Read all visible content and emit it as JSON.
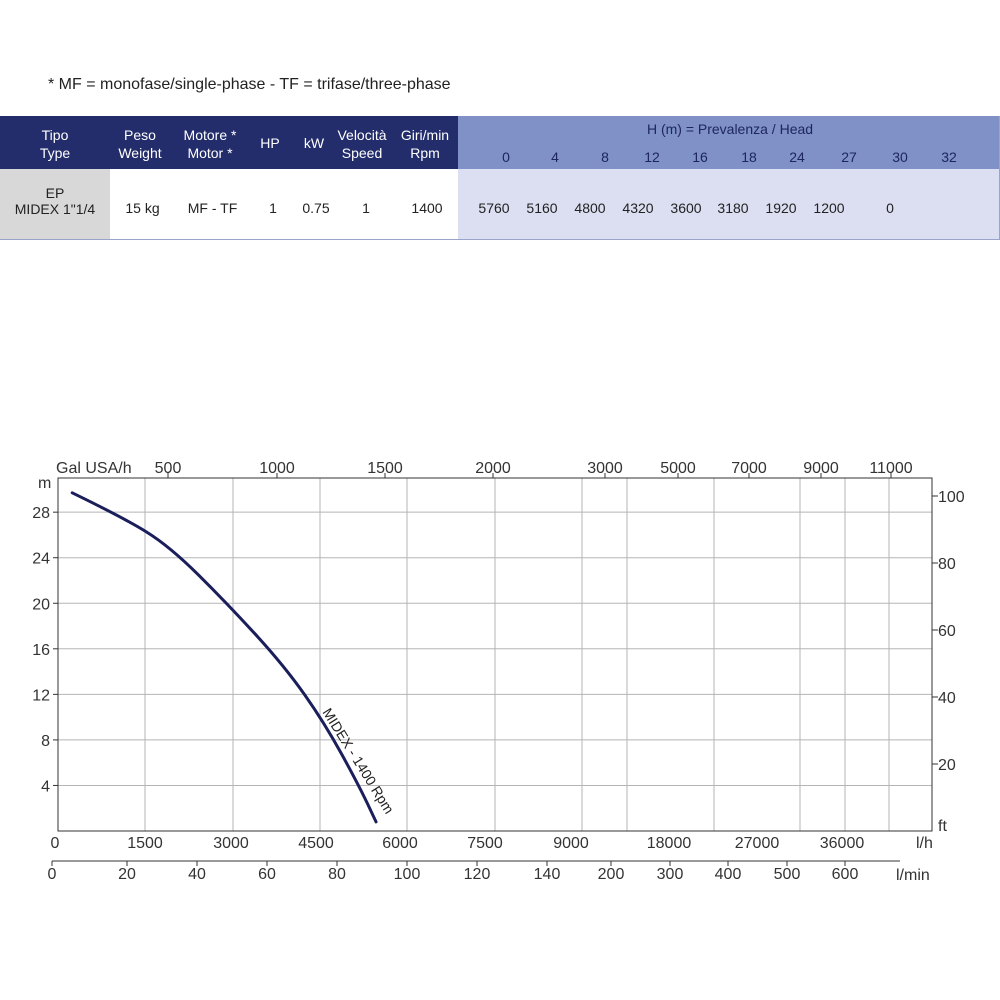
{
  "note": "* MF = monofase/single-phase - TF = trifase/three-phase",
  "table": {
    "headers": [
      {
        "key": "type",
        "label": "Tipo\nType"
      },
      {
        "key": "weight",
        "label": "Peso\nWeight"
      },
      {
        "key": "motor",
        "label": "Motore *\nMotor *"
      },
      {
        "key": "hp",
        "label": "HP"
      },
      {
        "key": "kw",
        "label": "kW"
      },
      {
        "key": "speed",
        "label": "Velocità\nSpeed"
      },
      {
        "key": "rpm",
        "label": "Giri/min\nRpm"
      }
    ],
    "head_title": "H (m) = Prevalenza /  Head",
    "head_values": [
      "0",
      "4",
      "8",
      "12",
      "16",
      "18",
      "24",
      "27",
      "30",
      "32"
    ],
    "row": {
      "type": "EP\nMIDEX 1\"1/4",
      "weight": "15 kg",
      "motor": "MF - TF",
      "hp": "1",
      "kw": "0.75",
      "speed": "1",
      "rpm": "1400",
      "flows": [
        "5760",
        "5160",
        "4800",
        "4320",
        "3600",
        "3180",
        "1920",
        "1200",
        "",
        "0"
      ]
    },
    "colors": {
      "header_dark": "#232d6b",
      "header_light": "#7f91c6",
      "row_light": "#dcdff2",
      "type_cell": "#d8d8d8"
    }
  },
  "chart_data": {
    "type": "line",
    "y_left_label": "m",
    "y_left_ticks": [
      "4",
      "8",
      "12",
      "16",
      "20",
      "24",
      "28"
    ],
    "y_left_range": [
      0,
      31
    ],
    "y_right_label": "ft",
    "y_right_ticks": [
      "20",
      "40",
      "60",
      "80",
      "100"
    ],
    "top_axis_label": "Gal USA/h",
    "top_axis_ticks": [
      "500",
      "1000",
      "1500",
      "2000",
      "3000",
      "5000",
      "7000",
      "9000",
      "11000"
    ],
    "x_lh_label": "l/h",
    "x_lh_ticks": [
      "0",
      "1500",
      "3000",
      "4500",
      "6000",
      "7500",
      "9000",
      "18000",
      "27000",
      "36000"
    ],
    "x_lmin_label": "l/min",
    "x_lmin_ticks": [
      "0",
      "20",
      "40",
      "60",
      "80",
      "100",
      "120",
      "140",
      "200",
      "300",
      "400",
      "500",
      "600"
    ],
    "grid": true,
    "series": [
      {
        "name": "MIDEX - 1400 Rpm",
        "color": "#1a1f5c",
        "points": [
          {
            "x": 300,
            "y": 29.7
          },
          {
            "x": 1200,
            "y": 27.5
          },
          {
            "x": 2000,
            "y": 25.0
          },
          {
            "x": 3000,
            "y": 20.0
          },
          {
            "x": 4000,
            "y": 14.5
          },
          {
            "x": 4700,
            "y": 9.5
          },
          {
            "x": 5300,
            "y": 4.0
          },
          {
            "x": 5600,
            "y": 0.8
          }
        ]
      }
    ]
  }
}
